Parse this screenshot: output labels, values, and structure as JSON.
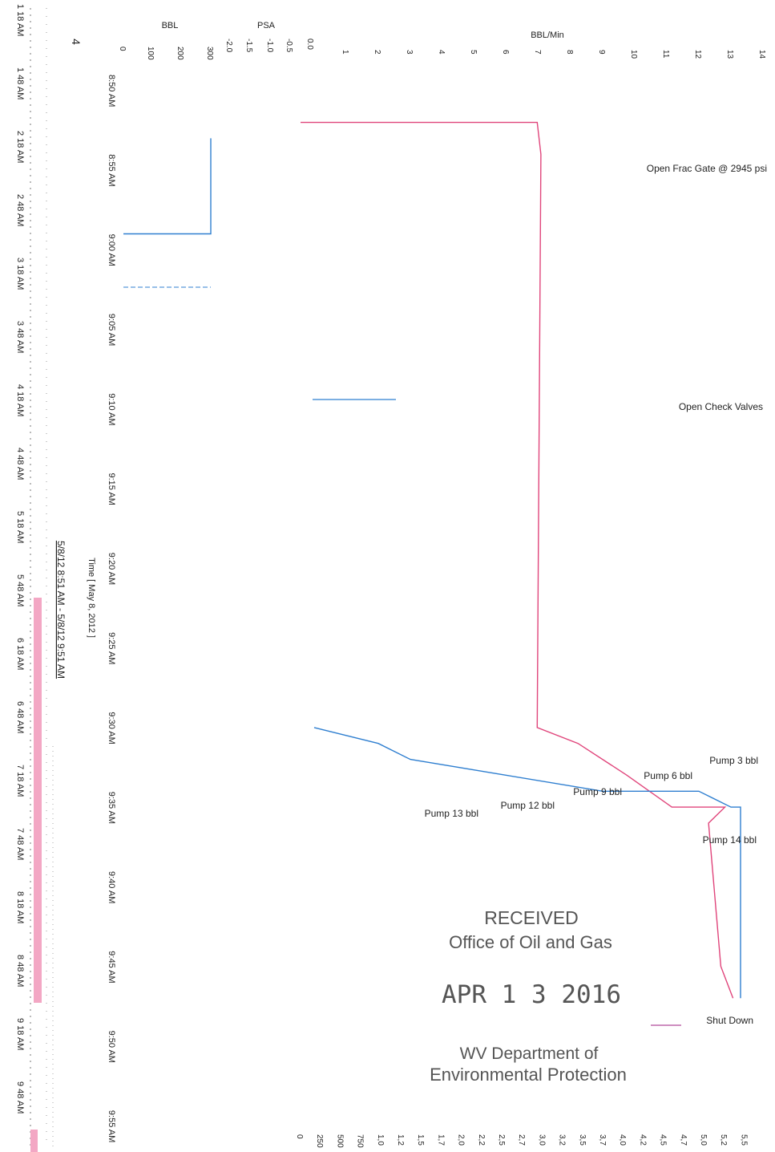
{
  "chart_data": {
    "type": "line",
    "x_axis": {
      "label": "Time [ May 8, 2012 ]",
      "ticks": [
        "8:50 AM",
        "8:55 AM",
        "9:00 AM",
        "9:05 AM",
        "9:10 AM",
        "9:15 AM",
        "9:20 AM",
        "9:25 AM",
        "9:30 AM",
        "9:35 AM",
        "9:40 AM",
        "9:45 AM",
        "9:50 AM",
        "9:55 AM"
      ]
    },
    "overview_axis": {
      "range_label": "5/8/12 8:51 AM - 5/8/12 9:51 AM",
      "ticks": [
        "1 18 AM",
        "1 48 AM",
        "2 18 AM",
        "2 48 AM",
        "3 18 AM",
        "3 48 AM",
        "4 18 AM",
        "4 48 AM",
        "5 18 AM",
        "5 48 AM",
        "6 18 AM",
        "6 48 AM",
        "7 18 AM",
        "7 48 AM",
        "8 18 AM",
        "8 48 AM",
        "9 18 AM",
        "9 48 AM"
      ],
      "arrow": "4"
    },
    "y_axes": {
      "bbl": {
        "label": "BBL",
        "ticks": [
          "0",
          "100",
          "200",
          "300"
        ]
      },
      "psa": {
        "label": "PSA",
        "ticks": [
          "-2.0",
          "-1.5",
          "-1.0",
          "-0.5",
          "0.0"
        ]
      },
      "bbl_min": {
        "label": "BBL/Min",
        "ticks": [
          "1",
          "2",
          "3",
          "4",
          "5",
          "6",
          "7",
          "8",
          "9",
          "10",
          "11",
          "12",
          "13",
          "14"
        ]
      },
      "pressure": {
        "label": "",
        "ticks": [
          "0",
          "250",
          "500",
          "750",
          "1,0",
          "1,2",
          "1,5",
          "1,7",
          "2,0",
          "2,2",
          "2,5",
          "2,7",
          "3,0",
          "3,2",
          "3,5",
          "3,7",
          "4,0",
          "4,2",
          "4,5",
          "4,7",
          "5,0",
          "5,2",
          "5,5"
        ]
      }
    },
    "series": [
      {
        "color": "#e0457b",
        "points": [
          [
            "8:53 AM",
            0.0
          ],
          [
            "8:53 AM",
            2900
          ],
          [
            "8:55 AM",
            2945
          ],
          [
            "8:55 AM",
            2945
          ],
          [
            "9:31 AM",
            2900
          ],
          [
            "9:32 AM",
            3400
          ],
          [
            "9:34 AM",
            4000
          ],
          [
            "9:36 AM",
            4550
          ],
          [
            "9:36 AM",
            5200
          ],
          [
            "9:37 AM",
            5000
          ],
          [
            "9:46 AM",
            5150
          ],
          [
            "9:48 AM",
            5300
          ]
        ]
      },
      {
        "color": "#2f7fd0",
        "points": [
          [
            "8:54 AM",
            300
          ],
          [
            "9:00 AM",
            300
          ],
          [
            "9:00 AM",
            0
          ]
        ]
      },
      {
        "color": "#2f7fd0",
        "points": [
          [
            "9:31 AM",
            0
          ],
          [
            "9:32 AM",
            2
          ],
          [
            "9:33 AM",
            3
          ],
          [
            "9:34 AM",
            6
          ],
          [
            "9:35 AM",
            9
          ],
          [
            "9:35 AM",
            12
          ],
          [
            "9:36 AM",
            13
          ],
          [
            "9:36 AM",
            13.3
          ],
          [
            "9:48 AM",
            13.3
          ]
        ]
      }
    ],
    "annotations": [
      "Open Frac Gate @ 2945 psi",
      "Open Check Valves",
      "Pump 3 bbl",
      "Pump 6 bbl",
      "Pump 9 bbl",
      "Pump 12 bbl",
      "Pump 13 bbl",
      "Pump 14 bbl",
      "Shut Down"
    ]
  },
  "stamp": {
    "line1": "RECEIVED",
    "line2": "Office of Oil and Gas",
    "date": "APR 1 3 2016",
    "line3": "WV Department of",
    "line4": "Environmental Protection"
  }
}
